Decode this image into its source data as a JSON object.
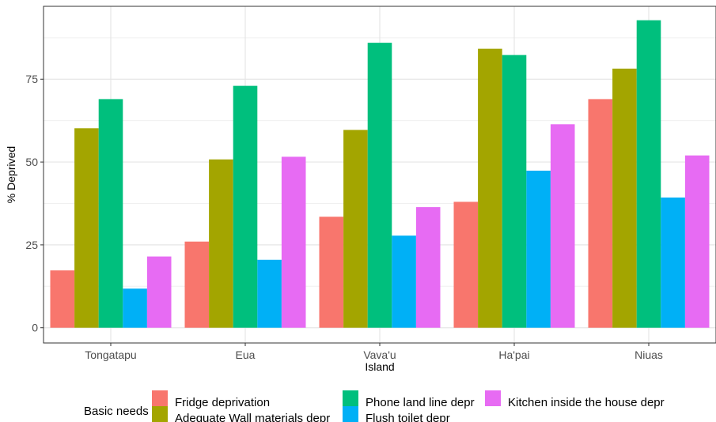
{
  "chart_data": {
    "type": "bar",
    "title": "",
    "xlabel": "Island",
    "ylabel": "% Deprived",
    "ylim": [
      -4.6,
      97.0
    ],
    "yticks": [
      0,
      25,
      50,
      75
    ],
    "ytick_labels": [
      "0",
      "25",
      "50",
      "75"
    ],
    "grid": true,
    "legend_position": "bottom",
    "legend_title": "Basic needs",
    "categories": [
      "Tongatapu",
      "Eua",
      "Vava'u",
      "Ha'pai",
      "Niuas"
    ],
    "series": [
      {
        "name": "Fridge deprivation",
        "color": "#F8766D",
        "values": [
          17.3,
          26.0,
          33.5,
          38.0,
          69.0
        ]
      },
      {
        "name": "Adequate Wall materials depr",
        "color": "#A3A500",
        "values": [
          60.2,
          50.8,
          59.7,
          84.2,
          78.2
        ]
      },
      {
        "name": "Phone land line depr",
        "color": "#00BF7D",
        "values": [
          69.0,
          73.0,
          86.0,
          82.3,
          92.8
        ]
      },
      {
        "name": "Flush toilet depr",
        "color": "#00B0F6",
        "values": [
          11.8,
          20.5,
          27.8,
          47.4,
          39.3
        ]
      },
      {
        "name": "Kitchen inside the house depr",
        "color": "#E76BF3",
        "values": [
          21.5,
          51.6,
          36.4,
          61.4,
          52.0
        ]
      }
    ]
  }
}
